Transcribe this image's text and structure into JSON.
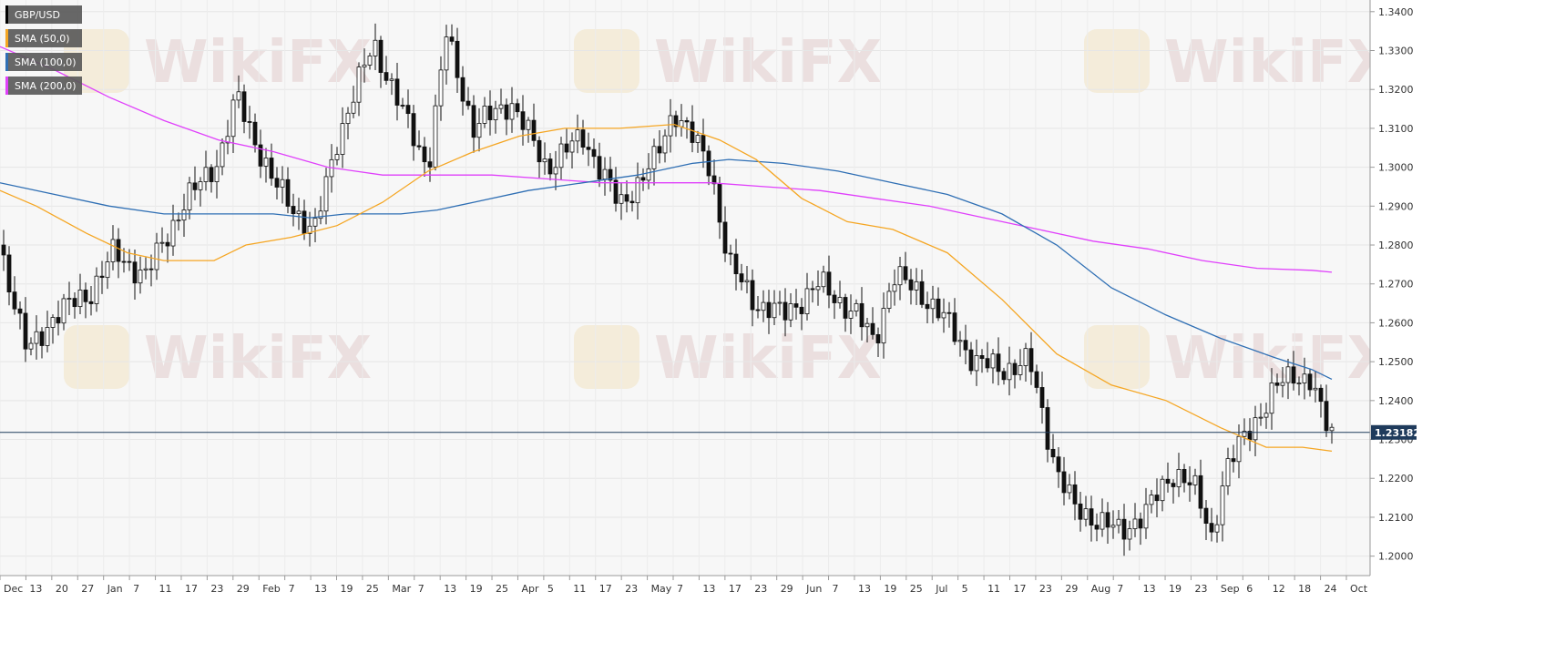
{
  "chart_data": {
    "type": "candlestick",
    "symbol": "GBP/USD",
    "current_price_label": "1.23182",
    "current_price": 1.23182,
    "ylim": [
      1.195,
      1.343
    ],
    "y_ticks": [
      "1.2000",
      "1.2100",
      "1.2200",
      "1.2300",
      "1.2400",
      "1.2500",
      "1.2600",
      "1.2700",
      "1.2800",
      "1.2900",
      "1.3000",
      "1.3100",
      "1.3200",
      "1.3300",
      "1.3400"
    ],
    "x_ticks": [
      "Dec",
      "13",
      "20",
      "27",
      "Jan",
      "7",
      "11",
      "17",
      "23",
      "29",
      "Feb",
      "7",
      "13",
      "19",
      "25",
      "Mar",
      "7",
      "13",
      "19",
      "25",
      "Apr",
      "5",
      "11",
      "17",
      "23",
      "May",
      "7",
      "13",
      "17",
      "23",
      "29",
      "Jun",
      "7",
      "13",
      "19",
      "25",
      "Jul",
      "5",
      "11",
      "17",
      "23",
      "29",
      "Aug",
      "7",
      "13",
      "19",
      "23",
      "Sep",
      "6",
      "12",
      "18",
      "24",
      "Oct"
    ],
    "grid": true,
    "legend_position": "top-left",
    "legend": [
      {
        "label": "GBP/USD",
        "color": "#000000"
      },
      {
        "label": "SMA (50,0)",
        "color": "#f5a623"
      },
      {
        "label": "SMA (100,0)",
        "color": "#2f6fb4"
      },
      {
        "label": "SMA (200,0)",
        "color": "#e040fb"
      }
    ],
    "watermark": "WikiFX",
    "sma_50": [
      [
        0,
        1.294
      ],
      [
        40,
        1.29
      ],
      [
        95,
        1.283
      ],
      [
        140,
        1.278
      ],
      [
        180,
        1.276
      ],
      [
        235,
        1.276
      ],
      [
        270,
        1.28
      ],
      [
        320,
        1.282
      ],
      [
        370,
        1.285
      ],
      [
        420,
        1.291
      ],
      [
        470,
        1.299
      ],
      [
        520,
        1.304
      ],
      [
        570,
        1.308
      ],
      [
        620,
        1.31
      ],
      [
        680,
        1.31
      ],
      [
        740,
        1.311
      ],
      [
        790,
        1.307
      ],
      [
        830,
        1.302
      ],
      [
        880,
        1.292
      ],
      [
        930,
        1.286
      ],
      [
        980,
        1.284
      ],
      [
        1040,
        1.278
      ],
      [
        1100,
        1.266
      ],
      [
        1160,
        1.252
      ],
      [
        1220,
        1.244
      ],
      [
        1280,
        1.24
      ],
      [
        1340,
        1.233
      ],
      [
        1390,
        1.228
      ],
      [
        1430,
        1.228
      ],
      [
        1462,
        1.227
      ]
    ],
    "sma_100": [
      [
        0,
        1.296
      ],
      [
        60,
        1.293
      ],
      [
        120,
        1.29
      ],
      [
        180,
        1.288
      ],
      [
        240,
        1.288
      ],
      [
        300,
        1.288
      ],
      [
        340,
        1.287
      ],
      [
        380,
        1.288
      ],
      [
        440,
        1.288
      ],
      [
        480,
        1.289
      ],
      [
        520,
        1.291
      ],
      [
        580,
        1.294
      ],
      [
        640,
        1.296
      ],
      [
        700,
        1.298
      ],
      [
        760,
        1.301
      ],
      [
        800,
        1.302
      ],
      [
        860,
        1.301
      ],
      [
        920,
        1.299
      ],
      [
        980,
        1.296
      ],
      [
        1040,
        1.293
      ],
      [
        1100,
        1.288
      ],
      [
        1160,
        1.28
      ],
      [
        1220,
        1.269
      ],
      [
        1280,
        1.262
      ],
      [
        1340,
        1.256
      ],
      [
        1400,
        1.251
      ],
      [
        1440,
        1.248
      ],
      [
        1462,
        1.2455
      ]
    ],
    "sma_200": [
      [
        0,
        1.331
      ],
      [
        60,
        1.325
      ],
      [
        120,
        1.318
      ],
      [
        180,
        1.312
      ],
      [
        240,
        1.307
      ],
      [
        300,
        1.304
      ],
      [
        360,
        1.3
      ],
      [
        420,
        1.298
      ],
      [
        480,
        1.298
      ],
      [
        540,
        1.298
      ],
      [
        600,
        1.297
      ],
      [
        660,
        1.296
      ],
      [
        720,
        1.296
      ],
      [
        780,
        1.296
      ],
      [
        840,
        1.295
      ],
      [
        900,
        1.294
      ],
      [
        960,
        1.292
      ],
      [
        1020,
        1.29
      ],
      [
        1080,
        1.287
      ],
      [
        1140,
        1.284
      ],
      [
        1200,
        1.281
      ],
      [
        1260,
        1.279
      ],
      [
        1320,
        1.276
      ],
      [
        1380,
        1.274
      ],
      [
        1440,
        1.2735
      ],
      [
        1462,
        1.273
      ]
    ]
  }
}
